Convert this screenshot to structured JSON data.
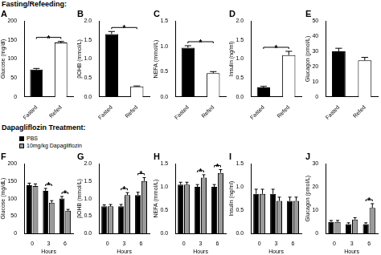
{
  "section_titles": [
    "Fasting/Refeeding:",
    "Dapagliflozin Treatment:"
  ],
  "chart_data": [
    {
      "type": "bar",
      "title": "A",
      "ylabel": "Glucose (mg/dl)",
      "categories": [
        "Fasted",
        "Refed"
      ],
      "values": [
        72,
        143
      ],
      "errors": [
        3,
        3
      ],
      "colors": [
        "#000000",
        "#ffffff"
      ],
      "ylim": [
        0,
        200
      ],
      "yticks": [
        0,
        50,
        100,
        150,
        200
      ],
      "grid": false,
      "annotations": [
        {
          "text": "*",
          "between": [
            "Fasted",
            "Refed"
          ]
        }
      ]
    },
    {
      "type": "bar",
      "title": "B",
      "ylabel": "βOHB (mmol/L)",
      "categories": [
        "Fasted",
        "Refed"
      ],
      "values": [
        1.65,
        0.28
      ],
      "errors": [
        0.07,
        0.01
      ],
      "colors": [
        "#000000",
        "#ffffff"
      ],
      "ylim": [
        0,
        2
      ],
      "yticks": [
        {
          "value": 0,
          "label": "0.0"
        },
        {
          "value": 0.5,
          "label": "0.5"
        },
        {
          "value": 1,
          "label": "1.0"
        },
        {
          "value": 1.5,
          "label": "1.5"
        },
        {
          "value": 2,
          "label": "2.0"
        }
      ],
      "grid": false,
      "annotations": [
        {
          "text": "*",
          "between": [
            "Fasted",
            "Refed"
          ]
        }
      ]
    },
    {
      "type": "bar",
      "title": "C",
      "ylabel": "NEFA (mmol/L)",
      "categories": [
        "Fasted",
        "Refed"
      ],
      "values": [
        0.97,
        0.47
      ],
      "errors": [
        0.04,
        0.03
      ],
      "colors": [
        "#000000",
        "#ffffff"
      ],
      "ylim": [
        0,
        1.5
      ],
      "yticks": [
        {
          "value": 0,
          "label": "0.0"
        },
        {
          "value": 0.5,
          "label": "0.5"
        },
        {
          "value": 1,
          "label": "1.0"
        },
        {
          "value": 1.5,
          "label": "1.5"
        }
      ],
      "grid": false,
      "annotations": [
        {
          "text": "*",
          "between": [
            "Fasted",
            "Refed"
          ]
        }
      ]
    },
    {
      "type": "bar",
      "title": "D",
      "ylabel": "Insulin (ng/ml)",
      "categories": [
        "Fasted",
        "Refed"
      ],
      "values": [
        0.25,
        1.1
      ],
      "errors": [
        0.03,
        0.1
      ],
      "colors": [
        "#000000",
        "#ffffff"
      ],
      "ylim": [
        0,
        2
      ],
      "yticks": [
        {
          "value": 0,
          "label": "0.0"
        },
        {
          "value": 0.5,
          "label": "0.5"
        },
        {
          "value": 1,
          "label": "1.0"
        },
        {
          "value": 1.5,
          "label": "1.5"
        },
        {
          "value": 2,
          "label": "2.0"
        }
      ],
      "grid": false,
      "annotations": [
        {
          "text": "*",
          "between": [
            "Fasted",
            "Refed"
          ]
        }
      ]
    },
    {
      "type": "bar",
      "title": "E",
      "ylabel": "Glucagon (pmol/L)",
      "categories": [
        "Fasted",
        "Refed"
      ],
      "values": [
        30,
        24
      ],
      "errors": [
        2,
        2
      ],
      "colors": [
        "#000000",
        "#ffffff"
      ],
      "ylim": [
        0,
        50
      ],
      "yticks": [
        0,
        10,
        20,
        30,
        40,
        50
      ],
      "grid": false
    },
    {
      "type": "bar",
      "title": "F",
      "ylabel": "Glucose (mg/dL)",
      "xlabel": "Hours",
      "categories": [
        "0",
        "3",
        "6"
      ],
      "legend": "upper left",
      "series": [
        {
          "name": "PBS",
          "color": "#000000",
          "values": [
            138,
            122,
            100
          ],
          "errors": [
            6,
            7,
            6
          ]
        },
        {
          "name": "10mg/kg Dapagliflozin",
          "color": "#999999",
          "values": [
            136,
            88,
            65
          ],
          "errors": [
            6,
            6,
            4
          ]
        }
      ],
      "ylim": [
        0,
        200
      ],
      "yticks": [
        0,
        50,
        100,
        150,
        200
      ],
      "grid": false,
      "annotations": [
        {
          "text": "*",
          "category": "3"
        },
        {
          "text": "*",
          "category": "6"
        }
      ]
    },
    {
      "type": "bar",
      "title": "G",
      "ylabel": "βOHB (mmol/L)",
      "xlabel": "Hours",
      "categories": [
        "0",
        "3",
        "6"
      ],
      "series": [
        {
          "name": "PBS",
          "color": "#000000",
          "values": [
            0.78,
            0.78,
            1.1
          ],
          "errors": [
            0.04,
            0.05,
            0.08
          ]
        },
        {
          "name": "10mg/kg Dapagliflozin",
          "color": "#999999",
          "values": [
            0.78,
            1.1,
            1.5
          ],
          "errors": [
            0.05,
            0.07,
            0.1
          ]
        }
      ],
      "ylim": [
        0,
        2
      ],
      "yticks": [
        {
          "value": 0,
          "label": "0.0"
        },
        {
          "value": 0.5,
          "label": "0.5"
        },
        {
          "value": 1,
          "label": "1.0"
        },
        {
          "value": 1.5,
          "label": "1.5"
        },
        {
          "value": 2,
          "label": "2.0"
        }
      ],
      "grid": false,
      "annotations": [
        {
          "text": "*",
          "category": "3"
        },
        {
          "text": "*",
          "category": "6"
        }
      ]
    },
    {
      "type": "bar",
      "title": "H",
      "ylabel": "NEFA (mmol/L)",
      "xlabel": "Hours",
      "categories": [
        "0",
        "3",
        "6"
      ],
      "series": [
        {
          "name": "PBS",
          "color": "#000000",
          "values": [
            1.05,
            1.0,
            1.0
          ],
          "errors": [
            0.05,
            0.05,
            0.05
          ]
        },
        {
          "name": "10mg/kg Dapagliflozin",
          "color": "#999999",
          "values": [
            1.05,
            1.2,
            1.3
          ],
          "errors": [
            0.05,
            0.06,
            0.07
          ]
        }
      ],
      "ylim": [
        0,
        1.5
      ],
      "yticks": [
        {
          "value": 0,
          "label": "0.0"
        },
        {
          "value": 0.5,
          "label": "0.5"
        },
        {
          "value": 1,
          "label": "1.0"
        },
        {
          "value": 1.5,
          "label": "1.5"
        }
      ],
      "grid": false,
      "annotations": [
        {
          "text": "*",
          "category": "3"
        },
        {
          "text": "*",
          "category": "6"
        }
      ]
    },
    {
      "type": "bar",
      "title": "I",
      "ylabel": "Insulin (ng/ml)",
      "xlabel": "Hours",
      "categories": [
        "0",
        "3",
        "6"
      ],
      "series": [
        {
          "name": "PBS",
          "color": "#000000",
          "values": [
            0.85,
            0.85,
            0.7
          ],
          "errors": [
            0.1,
            0.1,
            0.08
          ]
        },
        {
          "name": "10mg/kg Dapagliflozin",
          "color": "#999999",
          "values": [
            0.85,
            0.7,
            0.7
          ],
          "errors": [
            0.1,
            0.08,
            0.08
          ]
        }
      ],
      "ylim": [
        0,
        1.5
      ],
      "yticks": [
        {
          "value": 0,
          "label": "0.0"
        },
        {
          "value": 0.5,
          "label": "0.5"
        },
        {
          "value": 1,
          "label": "1.0"
        },
        {
          "value": 1.5,
          "label": "1.5"
        }
      ],
      "grid": false
    },
    {
      "type": "bar",
      "title": "J",
      "ylabel": "Glucagon (pmol/L)",
      "xlabel": "Hours",
      "categories": [
        "0",
        "3",
        "6"
      ],
      "series": [
        {
          "name": "PBS",
          "color": "#000000",
          "values": [
            5,
            4,
            4
          ],
          "errors": [
            0.6,
            0.6,
            0.6
          ]
        },
        {
          "name": "10mg/kg Dapagliflozin",
          "color": "#999999",
          "values": [
            5,
            6,
            11
          ],
          "errors": [
            0.6,
            0.8,
            1.8
          ]
        }
      ],
      "ylim": [
        0,
        30
      ],
      "yticks": [
        0,
        10,
        20,
        30
      ],
      "grid": false,
      "annotations": [
        {
          "text": "*",
          "category": "6"
        }
      ]
    }
  ]
}
